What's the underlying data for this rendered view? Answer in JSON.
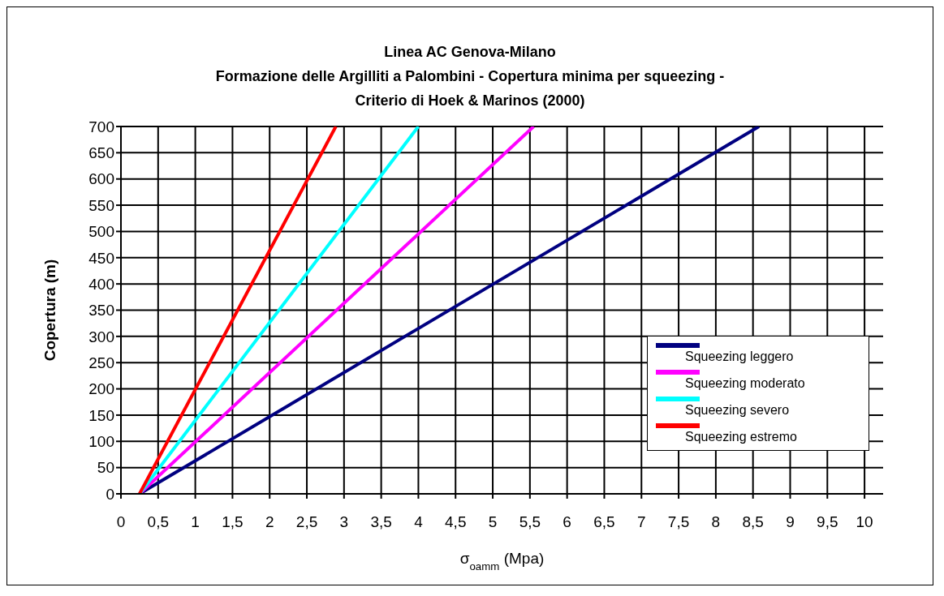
{
  "chart_data": {
    "type": "line",
    "title": "Linea AC Genova-Milano\nFormazione delle Argilliti a Palombini - Copertura minima per squeezing -\nCriterio di Hoek & Marinos (2000)",
    "xlabel": "σ$_{oamm}$ (Mpa)",
    "ylabel": "Copertura (m)",
    "series": [
      {
        "name": "Squeezing leggero",
        "color": "#000080",
        "x": [
          0.25,
          8.58
        ],
        "values": [
          0,
          700
        ]
      },
      {
        "name": "Squeezing moderato",
        "color": "#ff00ff",
        "x": [
          0.25,
          5.55
        ],
        "values": [
          0,
          700
        ]
      },
      {
        "name": "Squeezing severo",
        "color": "#00ffff",
        "x": [
          0.25,
          4.0
        ],
        "values": [
          0,
          700
        ]
      },
      {
        "name": "Squeezing estremo",
        "color": "#ff0000",
        "x": [
          0.25,
          2.89
        ],
        "values": [
          0,
          700
        ]
      }
    ],
    "xlim": [
      0,
      10.25
    ],
    "xticks": [
      0,
      {
        "value": 0.5,
        "label": "0,5"
      },
      1,
      {
        "value": 1.5,
        "label": "1,5"
      },
      2,
      {
        "value": 2.5,
        "label": "2,5"
      },
      3,
      {
        "value": 3.5,
        "label": "3,5"
      },
      4,
      {
        "value": 4.5,
        "label": "4,5"
      },
      5,
      {
        "value": 5.5,
        "label": "5,5"
      },
      6,
      {
        "value": 6.5,
        "label": "6,5"
      },
      7,
      {
        "value": 7.5,
        "label": "7,5"
      },
      8,
      {
        "value": 8.5,
        "label": "8,5"
      },
      9,
      {
        "value": 9.5,
        "label": "9,5"
      },
      10
    ],
    "ylim": [
      0,
      700
    ],
    "yticks": [
      0,
      50,
      100,
      150,
      200,
      250,
      300,
      350,
      400,
      450,
      500,
      550,
      600,
      650,
      700
    ],
    "grid": true,
    "legend": "bottom right",
    "marker": "none",
    "line_style": "solid"
  }
}
